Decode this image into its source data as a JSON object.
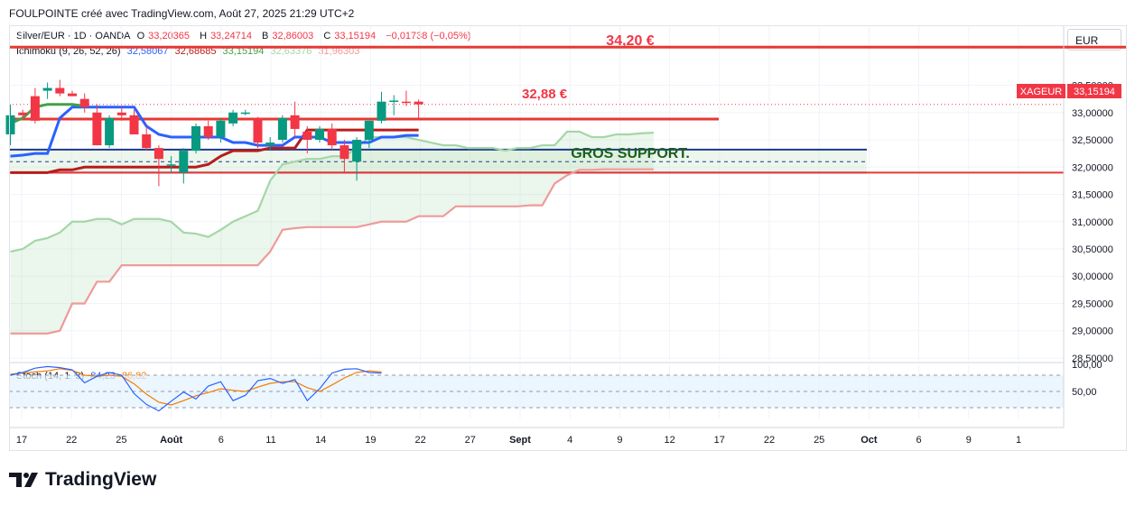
{
  "header": {
    "title": "FOULPOINTE créé avec TradingView.com, Août 27, 2025 21:29 UTC+2"
  },
  "legend": {
    "symbol": "Silver/EUR · 1D · OANDA",
    "ohlc": [
      {
        "label": "O",
        "value": "33,20365"
      },
      {
        "label": "H",
        "value": "33,24714"
      },
      {
        "label": "B",
        "value": "32,86003"
      },
      {
        "label": "C",
        "value": "33,15194"
      }
    ],
    "change": "−0,01738 (−0,05%)",
    "ichimoku_label": "Ichimoku (9, 26, 52, 26)",
    "ichimoku_values": [
      {
        "value": "32,58067",
        "color": "#2962ff"
      },
      {
        "value": "32,68685",
        "color": "#b71c1c"
      },
      {
        "value": "33,15194",
        "color": "#43a047"
      },
      {
        "value": "32,63376",
        "color": "#a5d6a7"
      },
      {
        "value": "31,96303",
        "color": "#ef9a9a"
      }
    ],
    "stoch_label": "Stoch (14, 1, 3)",
    "stoch_k": "84,23",
    "stoch_d": "86,82"
  },
  "currency": "EUR",
  "price_tag": {
    "symbol": "XAGEUR",
    "value": "33,15194"
  },
  "annotations": {
    "resistance": "34,20 €",
    "level": "32,88 €",
    "support": "GROS SUPPORT."
  },
  "colors": {
    "up": "#089981",
    "down": "#f23645",
    "tenkan": "#2962ff",
    "kijun": "#b71c1c",
    "chikou": "#43a047",
    "span_a": "#a5d6a7",
    "span_b": "#ef9a9a",
    "stoch_k": "#2962ff",
    "stoch_d": "#f57c00",
    "hline_red": "#e53935",
    "hline_blue": "#1e3a8a",
    "hline_purple": "#5e35b1"
  },
  "chart_data": {
    "type": "candlestick",
    "y_axis": {
      "range": [
        28.45,
        34.6
      ],
      "ticks": [
        "33,50000",
        "33,00000",
        "32,50000",
        "32,00000",
        "31,50000",
        "31,00000",
        "30,50000",
        "30,00000",
        "29,50000",
        "29,00000",
        "28,50000"
      ]
    },
    "x_axis": {
      "labels": [
        "17",
        "22",
        "25",
        "Août",
        "6",
        "11",
        "14",
        "19",
        "22",
        "27",
        "Sept",
        "4",
        "9",
        "12",
        "17",
        "22",
        "25",
        "Oct",
        "6",
        "9",
        "1"
      ]
    },
    "candles": [
      [
        32.6,
        33.15,
        32.4,
        32.95
      ],
      [
        33.0,
        33.05,
        32.88,
        32.95
      ],
      [
        33.3,
        33.45,
        32.8,
        32.85
      ],
      [
        33.4,
        33.55,
        33.25,
        33.45
      ],
      [
        33.45,
        33.6,
        33.3,
        33.35
      ],
      [
        33.35,
        33.4,
        33.3,
        33.3
      ],
      [
        33.25,
        33.35,
        33.0,
        33.1
      ],
      [
        33.0,
        33.15,
        32.4,
        32.4
      ],
      [
        32.4,
        32.95,
        32.35,
        32.9
      ],
      [
        33.0,
        33.1,
        32.85,
        32.95
      ],
      [
        32.95,
        33.05,
        32.6,
        32.6
      ],
      [
        32.6,
        32.75,
        32.3,
        32.35
      ],
      [
        32.35,
        32.4,
        31.65,
        32.15
      ],
      [
        32.05,
        32.2,
        31.9,
        32.05
      ],
      [
        31.9,
        32.35,
        31.7,
        32.3
      ],
      [
        32.3,
        32.8,
        32.25,
        32.75
      ],
      [
        32.75,
        32.85,
        32.5,
        32.55
      ],
      [
        32.55,
        32.9,
        32.45,
        32.85
      ],
      [
        32.8,
        33.05,
        32.75,
        33.0
      ],
      [
        33.0,
        33.05,
        32.95,
        33.0
      ],
      [
        32.9,
        32.92,
        32.35,
        32.45
      ],
      [
        32.4,
        32.55,
        32.3,
        32.45
      ],
      [
        32.5,
        32.95,
        32.45,
        32.9
      ],
      [
        32.95,
        33.2,
        32.55,
        32.7
      ],
      [
        32.65,
        32.75,
        32.25,
        32.5
      ],
      [
        32.5,
        32.75,
        32.45,
        32.7
      ],
      [
        32.7,
        32.8,
        32.3,
        32.4
      ],
      [
        32.4,
        32.5,
        31.9,
        32.15
      ],
      [
        32.1,
        32.55,
        31.75,
        32.5
      ],
      [
        32.5,
        32.85,
        32.35,
        32.85
      ],
      [
        32.85,
        33.38,
        32.8,
        33.2
      ],
      [
        33.2,
        33.32,
        32.95,
        33.22
      ],
      [
        33.2,
        33.4,
        33.12,
        33.18
      ],
      [
        33.2,
        33.24,
        32.86,
        33.15
      ]
    ],
    "series": [
      {
        "name": "Tenkan",
        "values": [
          32.2,
          32.22,
          32.25,
          32.25,
          32.9,
          33.1,
          33.1,
          33.1,
          33.1,
          33.1,
          33.1,
          32.75,
          32.6,
          32.55,
          32.55,
          32.55,
          32.55,
          32.55,
          32.45,
          32.45,
          32.4,
          32.4,
          32.4,
          32.55,
          32.55,
          32.55,
          32.45,
          32.45,
          32.45,
          32.45,
          32.55,
          32.55,
          32.58,
          32.58
        ]
      },
      {
        "name": "Kijun",
        "values": [
          31.9,
          31.9,
          31.9,
          31.9,
          31.95,
          31.95,
          32.0,
          32.0,
          32.0,
          32.0,
          32.0,
          32.0,
          32.0,
          32.0,
          32.0,
          32.0,
          32.05,
          32.2,
          32.3,
          32.3,
          32.3,
          32.35,
          32.35,
          32.35,
          32.68,
          32.68,
          32.68,
          32.68,
          32.68,
          32.68,
          32.68,
          32.68,
          32.68,
          32.68
        ]
      },
      {
        "name": "Chikou",
        "values": [
          32.8,
          32.9,
          33.1,
          33.15,
          33.15,
          33.15,
          33.12
        ]
      },
      {
        "name": "Senkou A",
        "values": [
          30.45,
          30.5,
          30.65,
          30.7,
          30.8,
          31.0,
          31.0,
          31.05,
          31.05,
          30.95,
          31.05,
          31.05,
          31.05,
          31.0,
          30.8,
          30.78,
          30.72,
          30.85,
          31.0,
          31.1,
          31.2,
          31.75,
          32.05,
          32.1,
          32.15,
          32.15,
          32.2,
          32.2,
          32.35,
          32.55,
          32.55,
          32.55,
          32.55,
          32.5,
          32.45,
          32.4,
          32.4,
          32.35,
          32.35,
          32.35,
          32.3,
          32.35,
          32.35,
          32.4,
          32.4,
          32.65,
          32.65,
          32.55,
          32.55,
          32.6,
          32.6,
          32.62,
          32.63
        ]
      },
      {
        "name": "Senkou B",
        "values": [
          28.95,
          28.95,
          28.95,
          28.95,
          29.0,
          29.5,
          29.5,
          29.9,
          29.9,
          30.2,
          30.2,
          30.2,
          30.2,
          30.2,
          30.2,
          30.2,
          30.2,
          30.2,
          30.2,
          30.2,
          30.2,
          30.45,
          30.85,
          30.88,
          30.9,
          30.9,
          30.9,
          30.9,
          30.9,
          30.95,
          31.0,
          31.0,
          31.0,
          31.1,
          31.1,
          31.1,
          31.28,
          31.28,
          31.28,
          31.28,
          31.28,
          31.28,
          31.3,
          31.3,
          31.7,
          31.85,
          31.95,
          31.95,
          31.96,
          31.96,
          31.96,
          31.96,
          31.96
        ]
      },
      {
        "name": "Stoch %K",
        "values": [
          80,
          85,
          93,
          96,
          94,
          90,
          66,
          78,
          85,
          80,
          46,
          26,
          14,
          32,
          49,
          36,
          60,
          68,
          33,
          43,
          70,
          74,
          65,
          72,
          33,
          55,
          84,
          91,
          92,
          85,
          84
        ]
      },
      {
        "name": "Stoch %D",
        "values": [
          82,
          84,
          86,
          88,
          92,
          89,
          80,
          78,
          80,
          78,
          64,
          45,
          30,
          25,
          33,
          42,
          48,
          55,
          52,
          50,
          58,
          65,
          68,
          68,
          57,
          50,
          62,
          75,
          85,
          88,
          86
        ]
      }
    ],
    "horizontal_lines": [
      34.2,
      32.88,
      32.32,
      32.1,
      31.9,
      31.96
    ],
    "stoch_axis": {
      "range": [
        0,
        100
      ],
      "ticks": [
        "100,00",
        "50,00"
      ],
      "band": [
        20,
        80
      ]
    }
  }
}
